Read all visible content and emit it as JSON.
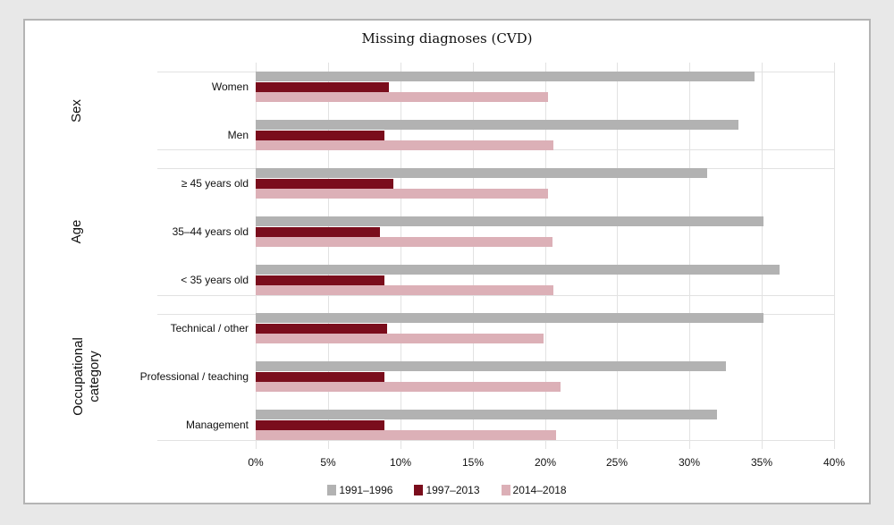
{
  "chart_data": {
    "type": "bar",
    "orientation": "horizontal",
    "title": "Missing diagnoses (CVD)",
    "xlabel": "",
    "ylabel": "",
    "xlim": [
      0,
      40
    ],
    "x_ticks": [
      "0%",
      "5%",
      "10%",
      "15%",
      "20%",
      "25%",
      "30%",
      "35%",
      "40%"
    ],
    "groups": [
      {
        "name": "Sex",
        "categories": [
          "Women",
          "Men"
        ]
      },
      {
        "name": "Age",
        "categories": [
          "≥ 45 years old",
          "35–44 years old",
          "< 35 years old"
        ]
      },
      {
        "name": "Occupational category",
        "categories": [
          "Technical / other",
          "Professional / teaching",
          "Management"
        ]
      }
    ],
    "categories": [
      "Women",
      "Men",
      "≥ 45 years old",
      "35–44 years old",
      "< 35 years old",
      "Technical / other",
      "Professional / teaching",
      "Management"
    ],
    "series": [
      {
        "name": "1991–1996",
        "color": "#b2b2b2",
        "values": [
          34.5,
          33.4,
          31.2,
          35.1,
          36.2,
          35.1,
          32.5,
          31.9
        ]
      },
      {
        "name": "1997–2013",
        "color": "#7a0d1c",
        "values": [
          9.2,
          8.9,
          9.5,
          8.6,
          8.9,
          9.1,
          8.9,
          8.9
        ]
      },
      {
        "name": "2014–2018",
        "color": "#dcb0b7",
        "values": [
          20.2,
          20.6,
          20.2,
          20.5,
          20.6,
          19.9,
          21.1,
          20.8
        ]
      }
    ],
    "legend_position": "bottom",
    "grid": true
  },
  "title": "Missing diagnoses (CVD)",
  "group_labels": [
    "Sex",
    "Age",
    "Occupational\ncategory"
  ],
  "legend": [
    {
      "label": "1991–1996",
      "color": "#b2b2b2"
    },
    {
      "label": "1997–2013",
      "color": "#7a0d1c"
    },
    {
      "label": "2014–2018",
      "color": "#dcb0b7"
    }
  ]
}
